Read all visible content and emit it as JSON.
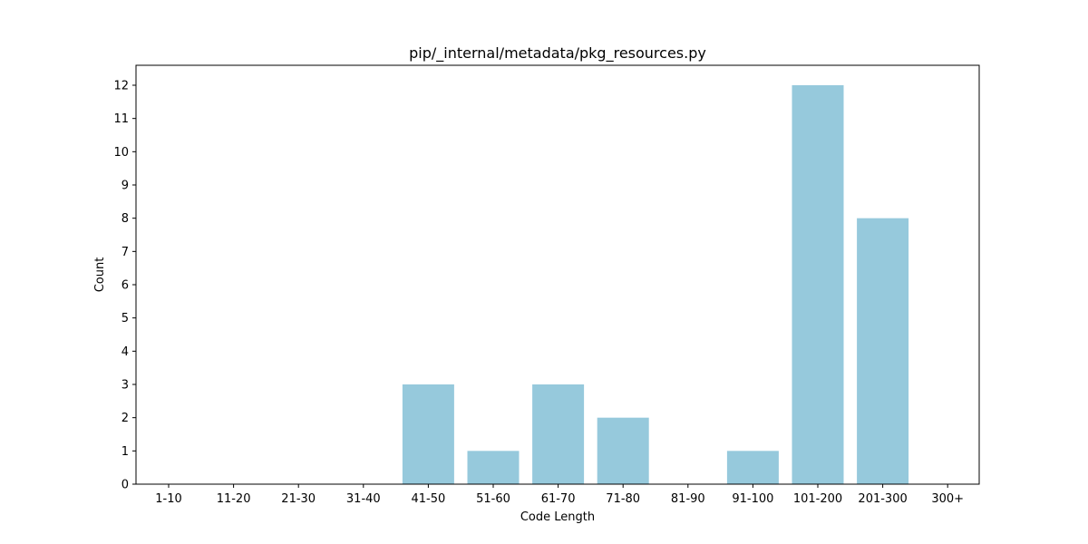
{
  "chart_data": {
    "type": "bar",
    "title": "pip/_internal/metadata/pkg_resources.py",
    "xlabel": "Code Length",
    "ylabel": "Count",
    "categories": [
      "1-10",
      "11-20",
      "21-30",
      "31-40",
      "41-50",
      "51-60",
      "61-70",
      "71-80",
      "81-90",
      "91-100",
      "101-200",
      "201-300",
      "300+"
    ],
    "values": [
      0,
      0,
      0,
      0,
      3,
      1,
      3,
      2,
      0,
      1,
      12,
      8,
      0
    ],
    "ylim": [
      0,
      12.6
    ],
    "yticks": [
      0,
      1,
      2,
      3,
      4,
      5,
      6,
      7,
      8,
      9,
      10,
      11,
      12
    ],
    "grid": false,
    "bar_color": "#96c9dc"
  }
}
